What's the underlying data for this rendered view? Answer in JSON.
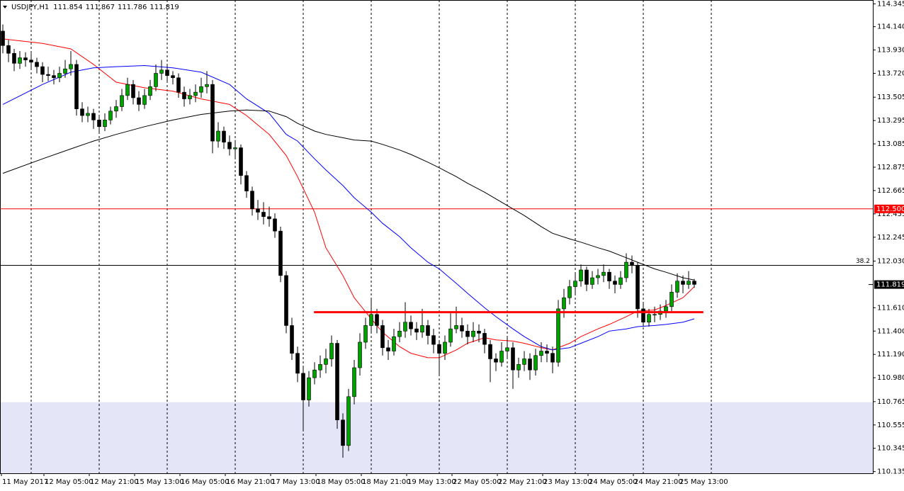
{
  "chart_data": {
    "type": "candlestick",
    "title": "USDJPY,H1",
    "header_values": [
      111.854,
      111.867,
      111.786,
      111.819
    ],
    "bull_color": "#00a000",
    "bear_color": "#000000",
    "wick_color": "#000000",
    "xlim": [
      -0.5,
      153.5
    ],
    "ylim": [
      110.12,
      114.38
    ],
    "yticks": [
      114.345,
      {
        "value": 114.14,
        "label": "114.140"
      },
      {
        "value": 113.93,
        "label": "113.930"
      },
      {
        "value": 113.72,
        "label": "113.720"
      },
      113.505,
      113.295,
      113.085,
      112.875,
      112.665,
      112.455,
      112.245,
      {
        "value": 112.03,
        "label": "112.030"
      },
      {
        "value": 111.61,
        "label": "111.610"
      },
      {
        "value": 111.4,
        "label": "111.400"
      },
      {
        "value": 111.19,
        "label": "111.190"
      },
      {
        "value": 110.98,
        "label": "110.980"
      },
      110.765,
      110.555,
      110.345,
      110.135
    ],
    "xticks": [
      {
        "value": -0.25,
        "label": "11 May 2017"
      },
      {
        "value": 7.25,
        "label": "12 May 05:00"
      },
      {
        "value": 15.25,
        "label": "12 May 21:00"
      },
      {
        "value": 23.25,
        "label": "15 May 13:00"
      },
      {
        "value": 31.25,
        "label": "16 May 05:00"
      },
      {
        "value": 39.25,
        "label": "16 May 21:00"
      },
      {
        "value": 47.25,
        "label": "17 May 13:00"
      },
      {
        "value": 55.25,
        "label": "18 May 05:00"
      },
      {
        "value": 63.25,
        "label": "18 May 21:00"
      },
      {
        "value": 71.25,
        "label": "19 May 13:00"
      },
      {
        "value": 79.25,
        "label": "22 May 05:00"
      },
      {
        "value": 87.25,
        "label": "22 May 21:00"
      },
      {
        "value": 95.25,
        "label": "23 May 13:00"
      },
      {
        "value": 103.25,
        "label": "24 May 05:00"
      },
      {
        "value": 111.25,
        "label": "24 May 21:00"
      },
      {
        "value": 119.25,
        "label": "25 May 13:00"
      }
    ],
    "separators": [
      5,
      17,
      29,
      41,
      53,
      65,
      77,
      89,
      101,
      113,
      125
    ],
    "candles": [
      [
        114.1,
        114.16,
        113.9,
        113.97
      ],
      [
        113.97,
        114.02,
        113.82,
        113.9
      ],
      [
        113.9,
        113.94,
        113.74,
        113.81
      ],
      [
        113.81,
        113.92,
        113.76,
        113.86
      ],
      [
        113.86,
        113.91,
        113.78,
        113.84
      ],
      [
        113.84,
        113.9,
        113.76,
        113.82
      ],
      [
        113.82,
        113.86,
        113.72,
        113.78
      ],
      [
        113.78,
        113.82,
        113.64,
        113.71
      ],
      [
        113.71,
        113.78,
        113.65,
        113.7
      ],
      [
        113.7,
        113.75,
        113.62,
        113.68
      ],
      [
        113.68,
        113.78,
        113.64,
        113.72
      ],
      [
        113.72,
        113.84,
        113.68,
        113.76
      ],
      [
        113.76,
        113.92,
        113.7,
        113.8
      ],
      [
        113.8,
        113.84,
        113.34,
        113.4
      ],
      [
        113.4,
        113.46,
        113.28,
        113.34
      ],
      [
        113.34,
        113.42,
        113.28,
        113.36
      ],
      [
        113.36,
        113.4,
        113.22,
        113.3
      ],
      [
        113.3,
        113.34,
        113.18,
        113.24
      ],
      [
        113.24,
        113.36,
        113.2,
        113.3
      ],
      [
        113.3,
        113.42,
        113.26,
        113.38
      ],
      [
        113.38,
        113.48,
        113.32,
        113.42
      ],
      [
        113.42,
        113.58,
        113.38,
        113.52
      ],
      [
        113.52,
        113.68,
        113.48,
        113.62
      ],
      [
        113.62,
        113.66,
        113.44,
        113.5
      ],
      [
        113.5,
        113.56,
        113.38,
        113.44
      ],
      [
        113.44,
        113.58,
        113.4,
        113.52
      ],
      [
        113.52,
        113.66,
        113.48,
        113.6
      ],
      [
        113.6,
        113.8,
        113.56,
        113.72
      ],
      [
        113.72,
        113.84,
        113.66,
        113.75
      ],
      [
        113.75,
        113.8,
        113.64,
        113.7
      ],
      [
        113.7,
        113.74,
        113.62,
        113.68
      ],
      [
        113.68,
        113.72,
        113.5,
        113.55
      ],
      [
        113.55,
        113.6,
        113.42,
        113.49
      ],
      [
        113.49,
        113.58,
        113.44,
        113.52
      ],
      [
        113.52,
        113.62,
        113.46,
        113.55
      ],
      [
        113.55,
        113.68,
        113.5,
        113.6
      ],
      [
        113.6,
        113.74,
        113.54,
        113.62
      ],
      [
        113.62,
        113.66,
        113.0,
        113.11
      ],
      [
        113.11,
        113.28,
        113.05,
        113.2
      ],
      [
        113.2,
        113.24,
        113.04,
        113.1
      ],
      [
        113.1,
        113.16,
        112.98,
        113.04
      ],
      [
        113.04,
        113.12,
        112.96,
        113.05
      ],
      [
        113.05,
        113.08,
        112.72,
        112.8
      ],
      [
        112.8,
        112.84,
        112.6,
        112.66
      ],
      [
        112.66,
        112.7,
        112.44,
        112.5
      ],
      [
        112.5,
        112.58,
        112.4,
        112.47
      ],
      [
        112.47,
        112.56,
        112.36,
        112.43
      ],
      [
        112.43,
        112.52,
        112.34,
        112.41
      ],
      [
        112.41,
        112.46,
        112.24,
        112.3
      ],
      [
        112.3,
        112.34,
        111.84,
        111.9
      ],
      [
        111.9,
        111.94,
        111.38,
        111.45
      ],
      [
        111.45,
        111.52,
        111.14,
        111.2
      ],
      [
        111.2,
        111.26,
        110.94,
        111.02
      ],
      [
        111.02,
        111.08,
        110.5,
        110.78
      ],
      [
        110.78,
        111.04,
        110.72,
        110.98
      ],
      [
        110.98,
        111.12,
        110.92,
        111.05
      ],
      [
        111.05,
        111.18,
        110.98,
        111.1
      ],
      [
        111.1,
        111.24,
        111.02,
        111.15
      ],
      [
        111.15,
        111.36,
        111.08,
        111.29
      ],
      [
        111.29,
        111.32,
        110.52,
        110.6
      ],
      [
        110.6,
        110.66,
        110.26,
        110.37
      ],
      [
        110.37,
        110.88,
        110.32,
        110.81
      ],
      [
        110.81,
        111.14,
        110.74,
        111.07
      ],
      [
        111.07,
        111.38,
        111.0,
        111.3
      ],
      [
        111.3,
        111.52,
        111.24,
        111.45
      ],
      [
        111.45,
        111.7,
        111.38,
        111.55
      ],
      [
        111.55,
        111.6,
        111.38,
        111.45
      ],
      [
        111.45,
        111.5,
        111.18,
        111.25
      ],
      [
        111.25,
        111.32,
        111.14,
        111.22
      ],
      [
        111.22,
        111.42,
        111.18,
        111.35
      ],
      [
        111.35,
        111.48,
        111.3,
        111.4
      ],
      [
        111.4,
        111.66,
        111.34,
        111.48
      ],
      [
        111.48,
        111.54,
        111.36,
        111.42
      ],
      [
        111.42,
        111.48,
        111.32,
        111.39
      ],
      [
        111.39,
        111.6,
        111.34,
        111.45
      ],
      [
        111.45,
        111.5,
        111.28,
        111.36
      ],
      [
        111.36,
        111.42,
        111.2,
        111.28
      ],
      [
        111.28,
        111.32,
        111.0,
        111.2
      ],
      [
        111.2,
        111.36,
        111.14,
        111.3
      ],
      [
        111.3,
        111.56,
        111.26,
        111.42
      ],
      [
        111.42,
        111.62,
        111.38,
        111.45
      ],
      [
        111.45,
        111.52,
        111.34,
        111.4
      ],
      [
        111.4,
        111.46,
        111.28,
        111.35
      ],
      [
        111.35,
        111.48,
        111.3,
        111.4
      ],
      [
        111.4,
        111.46,
        111.3,
        111.38
      ],
      [
        111.38,
        111.42,
        111.2,
        111.28
      ],
      [
        111.28,
        111.32,
        110.94,
        111.15
      ],
      [
        111.15,
        111.2,
        111.04,
        111.12
      ],
      [
        111.12,
        111.3,
        111.08,
        111.22
      ],
      [
        111.22,
        111.34,
        111.16,
        111.25
      ],
      [
        111.25,
        111.3,
        110.88,
        111.05
      ],
      [
        111.05,
        111.16,
        110.98,
        111.1
      ],
      [
        111.1,
        111.22,
        111.04,
        111.15
      ],
      [
        111.15,
        111.2,
        110.96,
        111.05
      ],
      [
        111.05,
        111.24,
        111.0,
        111.18
      ],
      [
        111.18,
        111.3,
        111.12,
        111.22
      ],
      [
        111.22,
        111.28,
        111.12,
        111.2
      ],
      [
        111.2,
        111.26,
        111.02,
        111.12
      ],
      [
        111.12,
        111.68,
        111.08,
        111.6
      ],
      [
        111.6,
        111.78,
        111.52,
        111.7
      ],
      [
        111.7,
        111.86,
        111.64,
        111.8
      ],
      [
        111.8,
        111.92,
        111.74,
        111.85
      ],
      [
        111.85,
        112.0,
        111.8,
        111.95
      ],
      [
        111.95,
        111.98,
        111.76,
        111.82
      ],
      [
        111.82,
        111.94,
        111.78,
        111.88
      ],
      [
        111.88,
        111.96,
        111.82,
        111.9
      ],
      [
        111.9,
        112.0,
        111.84,
        111.93
      ],
      [
        111.93,
        111.96,
        111.78,
        111.85
      ],
      [
        111.85,
        111.9,
        111.74,
        111.82
      ],
      [
        111.82,
        111.94,
        111.78,
        111.88
      ],
      [
        111.88,
        112.1,
        111.84,
        112.02
      ],
      [
        112.02,
        112.08,
        111.92,
        111.99
      ],
      [
        111.99,
        112.02,
        111.52,
        111.6
      ],
      [
        111.6,
        111.66,
        111.44,
        111.48
      ],
      [
        111.48,
        111.6,
        111.44,
        111.55
      ],
      [
        111.55,
        111.62,
        111.48,
        111.55
      ],
      [
        111.55,
        111.64,
        111.5,
        111.58
      ],
      [
        111.58,
        111.68,
        111.52,
        111.62
      ],
      [
        111.62,
        111.82,
        111.58,
        111.75
      ],
      [
        111.75,
        111.92,
        111.7,
        111.85
      ],
      [
        111.85,
        111.9,
        111.74,
        111.82
      ],
      [
        111.82,
        111.94,
        111.78,
        111.85
      ],
      [
        111.85,
        111.87,
        111.79,
        111.82
      ]
    ],
    "series": [
      {
        "color": "#ff0000",
        "x": [
          0,
          7,
          12,
          16,
          20,
          25,
          30,
          35,
          40,
          43,
          47,
          50,
          52,
          55,
          57,
          60,
          62,
          65,
          67,
          70,
          72,
          75,
          77,
          80,
          82,
          85,
          87,
          90,
          92,
          95,
          97,
          100,
          102,
          105,
          107,
          110,
          112,
          115,
          117,
          120,
          122
        ],
        "values": [
          114.03,
          113.99,
          113.94,
          113.8,
          113.64,
          113.59,
          113.56,
          113.49,
          113.44,
          113.34,
          113.17,
          112.98,
          112.79,
          112.47,
          112.15,
          111.9,
          111.7,
          111.51,
          111.39,
          111.26,
          111.2,
          111.16,
          111.16,
          111.23,
          111.29,
          111.34,
          111.32,
          111.31,
          111.29,
          111.25,
          111.23,
          111.29,
          111.35,
          111.42,
          111.46,
          111.53,
          111.58,
          111.59,
          111.63,
          111.7,
          111.8
        ]
      },
      {
        "color": "#0000ff",
        "x": [
          0,
          7,
          12,
          16,
          20,
          25,
          30,
          35,
          40,
          43,
          47,
          50,
          52,
          55,
          57,
          60,
          62,
          65,
          67,
          70,
          72,
          75,
          77,
          80,
          82,
          85,
          87,
          90,
          92,
          95,
          97,
          100,
          102,
          105,
          107,
          110,
          112,
          115,
          117,
          120,
          122
        ],
        "values": [
          113.44,
          113.62,
          113.73,
          113.77,
          113.78,
          113.79,
          113.77,
          113.73,
          113.62,
          113.49,
          113.36,
          113.17,
          113.11,
          112.95,
          112.85,
          112.71,
          112.6,
          112.47,
          112.37,
          112.25,
          112.15,
          112.02,
          111.96,
          111.83,
          111.74,
          111.61,
          111.53,
          111.42,
          111.35,
          111.26,
          111.23,
          111.25,
          111.29,
          111.35,
          111.4,
          111.42,
          111.44,
          111.45,
          111.46,
          111.48,
          111.51
        ]
      },
      {
        "color": "#000000",
        "x": [
          0,
          7,
          12,
          16,
          20,
          25,
          30,
          35,
          40,
          43,
          47,
          50,
          52,
          55,
          57,
          60,
          62,
          65,
          67,
          70,
          72,
          75,
          77,
          80,
          82,
          85,
          87,
          90,
          92,
          95,
          97,
          100,
          102,
          105,
          107,
          110,
          112,
          115,
          117,
          120,
          122
        ],
        "values": [
          112.82,
          112.95,
          113.04,
          113.11,
          113.17,
          113.24,
          113.3,
          113.35,
          113.38,
          113.39,
          113.38,
          113.33,
          113.27,
          113.2,
          113.17,
          113.14,
          113.12,
          113.11,
          113.08,
          113.03,
          112.99,
          112.92,
          112.87,
          112.79,
          112.73,
          112.65,
          112.59,
          112.5,
          112.44,
          112.34,
          112.28,
          112.23,
          112.2,
          112.15,
          112.12,
          112.06,
          112.02,
          111.96,
          111.93,
          111.88,
          111.86
        ]
      }
    ],
    "horizontal_line": {
      "value": 112.5,
      "label": "112.500",
      "color": "#ff0000"
    },
    "fibo_level": {
      "value": 111.992,
      "label": "38.2",
      "color": "#000000"
    },
    "support_line": {
      "value": 111.57,
      "x": [
        54.9,
        123.6
      ],
      "color": "#ff0000"
    },
    "zone": {
      "ylim": [
        110.12,
        110.76
      ],
      "color": "#e4e6f8"
    },
    "last_price": 111.819
  }
}
